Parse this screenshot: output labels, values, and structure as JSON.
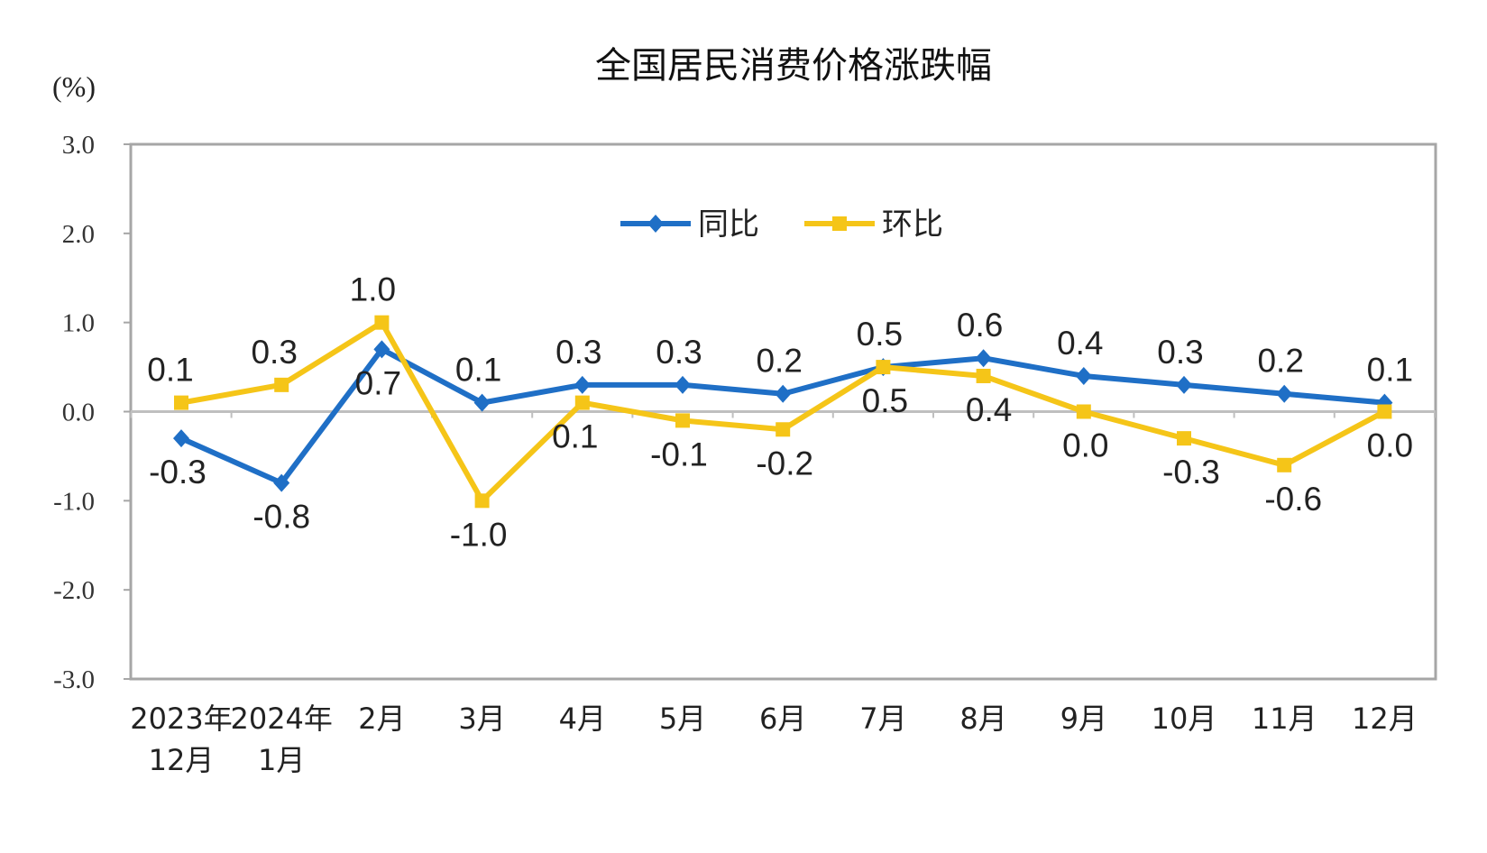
{
  "chart_data": {
    "type": "line",
    "title": "全国居民消费价格涨跌幅",
    "ylabel": "(%)",
    "ylim": [
      -3.0,
      3.0
    ],
    "yticks": [
      "3.0",
      "2.0",
      "1.0",
      "0.0",
      "-1.0",
      "-2.0",
      "-3.0"
    ],
    "categories": [
      [
        "2023年",
        "12月"
      ],
      [
        "2024年",
        "1月"
      ],
      [
        "2月"
      ],
      [
        "3月"
      ],
      [
        "4月"
      ],
      [
        "5月"
      ],
      [
        "6月"
      ],
      [
        "7月"
      ],
      [
        "8月"
      ],
      [
        "9月"
      ],
      [
        "10月"
      ],
      [
        "11月"
      ],
      [
        "12月"
      ]
    ],
    "legend_position": "top-center",
    "grid": false,
    "series": [
      {
        "name": "同比",
        "color": "#1f6fc6",
        "marker": "diamond",
        "values": [
          -0.3,
          -0.8,
          0.7,
          0.1,
          0.3,
          0.3,
          0.2,
          0.5,
          0.6,
          0.4,
          0.3,
          0.2,
          0.1
        ],
        "labels": [
          "-0.3",
          "-0.8",
          "0.7",
          "0.1",
          "0.3",
          "0.3",
          "0.2",
          "0.5",
          "0.6",
          "0.4",
          "0.3",
          "0.2",
          "0.1"
        ]
      },
      {
        "name": "环比",
        "color": "#f5c518",
        "marker": "square",
        "values": [
          0.1,
          0.3,
          1.0,
          -1.0,
          0.1,
          -0.1,
          -0.2,
          0.5,
          0.4,
          0.0,
          -0.3,
          -0.6,
          0.0
        ],
        "labels": [
          "0.1",
          "0.3",
          "1.0",
          "-1.0",
          "0.1",
          "-0.1",
          "-0.2",
          "0.5",
          "0.4",
          "0.0",
          "-0.3",
          "-0.6",
          "0.0"
        ]
      }
    ]
  }
}
